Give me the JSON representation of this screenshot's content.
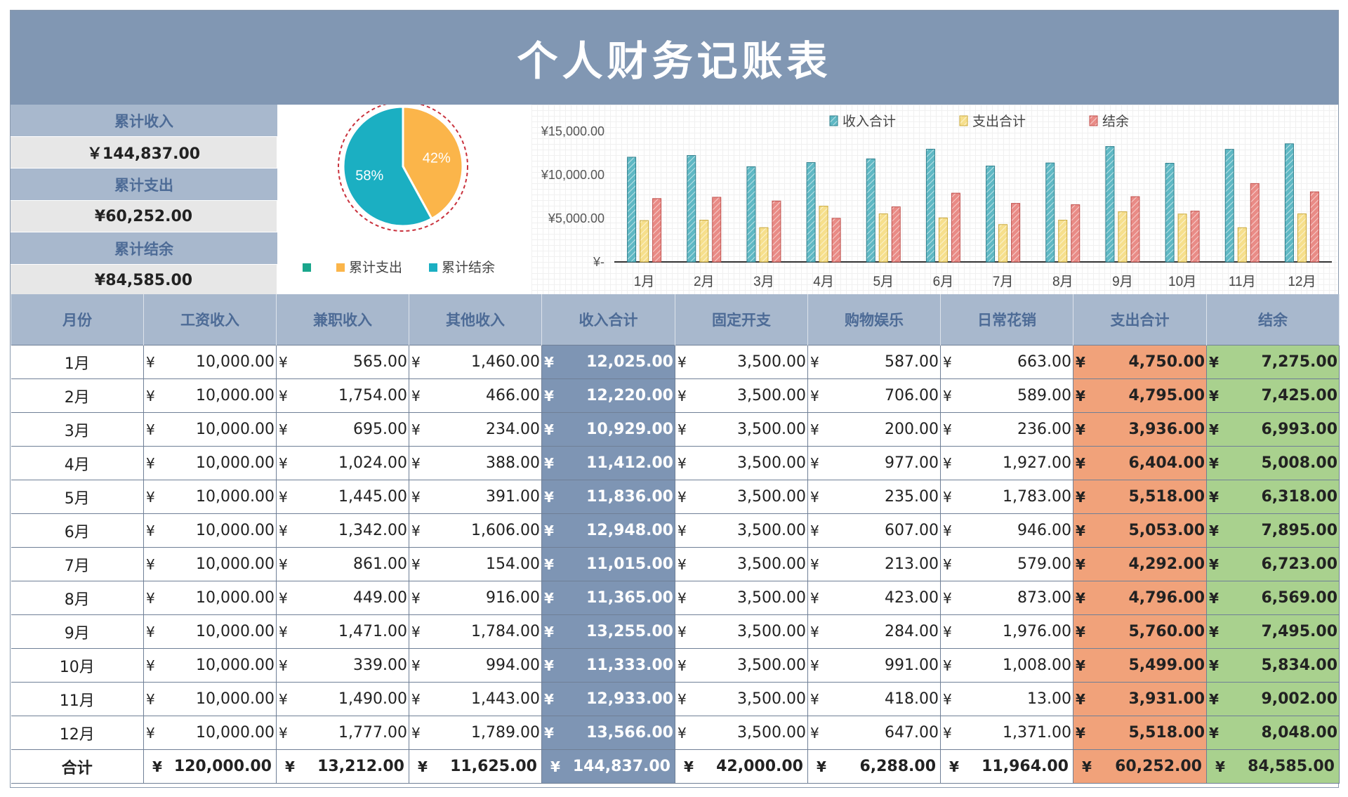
{
  "title": "个人财务记账表",
  "summary": [
    {
      "label": "累计收入",
      "value": "￥144,837.00"
    },
    {
      "label": "累计支出",
      "value": "¥60,252.00"
    },
    {
      "label": "累计结余",
      "value": "¥84,585.00"
    }
  ],
  "currency_symbol": "¥",
  "colors": {
    "header_bg": "#8197b3",
    "income_col": "#7e95b4",
    "expense_col": "#f1a27a",
    "balance_col": "#a9d18e",
    "pie_expense": "#fbb54a",
    "pie_balance": "#1bafc2",
    "bar_income": "#5fb8c4",
    "bar_expense": "#f6df8c",
    "bar_balance": "#e98b86"
  },
  "table": {
    "headers": [
      "月份",
      "工资收入",
      "兼职收入",
      "其他收入",
      "收入合计",
      "固定开支",
      "购物娱乐",
      "日常花销",
      "支出合计",
      "结余"
    ],
    "rows": [
      [
        "1月",
        "10,000.00",
        "565.00",
        "1,460.00",
        "12,025.00",
        "3,500.00",
        "587.00",
        "663.00",
        "4,750.00",
        "7,275.00"
      ],
      [
        "2月",
        "10,000.00",
        "1,754.00",
        "466.00",
        "12,220.00",
        "3,500.00",
        "706.00",
        "589.00",
        "4,795.00",
        "7,425.00"
      ],
      [
        "3月",
        "10,000.00",
        "695.00",
        "234.00",
        "10,929.00",
        "3,500.00",
        "200.00",
        "236.00",
        "3,936.00",
        "6,993.00"
      ],
      [
        "4月",
        "10,000.00",
        "1,024.00",
        "388.00",
        "11,412.00",
        "3,500.00",
        "977.00",
        "1,927.00",
        "6,404.00",
        "5,008.00"
      ],
      [
        "5月",
        "10,000.00",
        "1,445.00",
        "391.00",
        "11,836.00",
        "3,500.00",
        "235.00",
        "1,783.00",
        "5,518.00",
        "6,318.00"
      ],
      [
        "6月",
        "10,000.00",
        "1,342.00",
        "1,606.00",
        "12,948.00",
        "3,500.00",
        "607.00",
        "946.00",
        "5,053.00",
        "7,895.00"
      ],
      [
        "7月",
        "10,000.00",
        "861.00",
        "154.00",
        "11,015.00",
        "3,500.00",
        "213.00",
        "579.00",
        "4,292.00",
        "6,723.00"
      ],
      [
        "8月",
        "10,000.00",
        "449.00",
        "916.00",
        "11,365.00",
        "3,500.00",
        "423.00",
        "873.00",
        "4,796.00",
        "6,569.00"
      ],
      [
        "9月",
        "10,000.00",
        "1,471.00",
        "1,784.00",
        "13,255.00",
        "3,500.00",
        "284.00",
        "1,976.00",
        "5,760.00",
        "7,495.00"
      ],
      [
        "10月",
        "10,000.00",
        "339.00",
        "994.00",
        "11,333.00",
        "3,500.00",
        "991.00",
        "1,008.00",
        "5,499.00",
        "5,834.00"
      ],
      [
        "11月",
        "10,000.00",
        "1,490.00",
        "1,443.00",
        "12,933.00",
        "3,500.00",
        "418.00",
        "13.00",
        "3,931.00",
        "9,002.00"
      ],
      [
        "12月",
        "10,000.00",
        "1,777.00",
        "1,789.00",
        "13,566.00",
        "3,500.00",
        "647.00",
        "1,371.00",
        "5,518.00",
        "8,048.00"
      ]
    ],
    "total": [
      "合计",
      "120,000.00",
      "13,212.00",
      "11,625.00",
      "144,837.00",
      "42,000.00",
      "6,288.00",
      "11,964.00",
      "60,252.00",
      "84,585.00"
    ]
  },
  "chart_data": [
    {
      "type": "pie",
      "labels": [
        "累计支出",
        "累计结余"
      ],
      "values": [
        42,
        58
      ],
      "data_labels": [
        "42%",
        "58%"
      ],
      "legend": [
        "",
        "累计支出",
        "累计结余"
      ],
      "legend_position": "bottom",
      "colors": [
        "#fbb54a",
        "#1bafc2"
      ]
    },
    {
      "type": "bar",
      "categories": [
        "1月",
        "2月",
        "3月",
        "4月",
        "5月",
        "6月",
        "7月",
        "8月",
        "9月",
        "10月",
        "11月",
        "12月"
      ],
      "series": [
        {
          "name": "收入合计",
          "values": [
            12025,
            12220,
            10929,
            11412,
            11836,
            12948,
            11015,
            11365,
            13255,
            11333,
            12933,
            13566
          ]
        },
        {
          "name": "支出合计",
          "values": [
            4750,
            4795,
            3936,
            6404,
            5518,
            5053,
            4292,
            4796,
            5760,
            5499,
            3931,
            5518
          ]
        },
        {
          "name": "结余",
          "values": [
            7275,
            7425,
            6993,
            5008,
            6318,
            7895,
            6723,
            6569,
            7495,
            5834,
            9002,
            8048
          ]
        }
      ],
      "y_ticks": [
        "¥-",
        "¥5,000.00",
        "¥10,000.00",
        "¥15,000.00"
      ],
      "ylim": [
        0,
        15000
      ],
      "legend_position": "top",
      "grid": true
    }
  ]
}
